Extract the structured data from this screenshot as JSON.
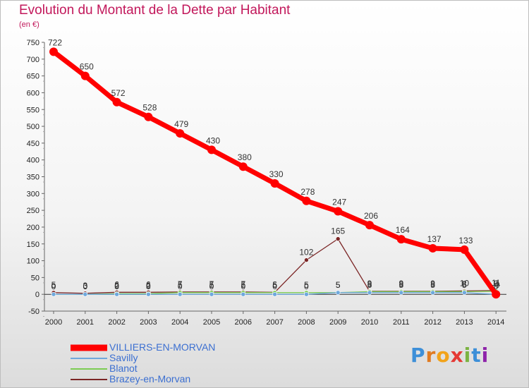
{
  "title": "Evolution du Montant de la Dette par Habitant",
  "subtitle": "(en €)",
  "brand": {
    "letters": [
      "P",
      "r",
      "o",
      "x",
      "i",
      "t",
      "i"
    ]
  },
  "chart_data": {
    "type": "line",
    "x": [
      "2000",
      "2001",
      "2002",
      "2003",
      "2004",
      "2005",
      "2006",
      "2007",
      "2008",
      "2009",
      "2010",
      "2011",
      "2012",
      "2013",
      "2014"
    ],
    "ylim": [
      -50,
      750
    ],
    "yticks": [
      "-50",
      "0",
      "50",
      "100",
      "150",
      "200",
      "250",
      "300",
      "350",
      "400",
      "450",
      "500",
      "550",
      "600",
      "650",
      "700",
      "750"
    ],
    "grid": false,
    "legend_position": "bottom-left",
    "series": [
      {
        "name": "VILLIERS-EN-MORVAN",
        "color": "#ff0000",
        "values": [
          722,
          650,
          572,
          528,
          479,
          430,
          380,
          330,
          278,
          247,
          206,
          164,
          137,
          133,
          0
        ],
        "labels": [
          "722",
          "650",
          "572",
          "528",
          "479",
          "430",
          "380",
          "330",
          "278",
          "247",
          "206",
          "164",
          "137",
          "133",
          "0"
        ]
      },
      {
        "name": "Savilly",
        "color": "#6fa8dc",
        "values": [
          0,
          0,
          0,
          0,
          0,
          0,
          0,
          0,
          0,
          5,
          5,
          5,
          5,
          5,
          0
        ],
        "labels": [
          "0",
          "0",
          "0",
          "0",
          "0",
          "0",
          "0",
          "0",
          "0",
          "5",
          "5",
          "5",
          "5",
          "5",
          "0"
        ]
      },
      {
        "name": "Blanot",
        "color": "#7ccc52",
        "values": [
          0,
          0,
          2,
          2,
          5,
          5,
          5,
          5,
          5,
          5,
          8,
          8,
          8,
          8,
          9
        ],
        "labels": [
          "0",
          "0",
          "2",
          "2",
          "5",
          "5",
          "5",
          "5",
          "5",
          "5",
          "8",
          "8",
          "8",
          "8",
          "9"
        ]
      },
      {
        "name": "Brazey-en-Morvan",
        "color": "#7b2525",
        "values": [
          5,
          3,
          6,
          6,
          7,
          7,
          7,
          6,
          102,
          165,
          9,
          9,
          9,
          10,
          11
        ],
        "labels": [
          "5",
          "3",
          "6",
          "6",
          "7",
          "7",
          "7",
          "6",
          "102",
          "165",
          "9",
          "9",
          "9",
          "10",
          "11"
        ]
      }
    ]
  }
}
